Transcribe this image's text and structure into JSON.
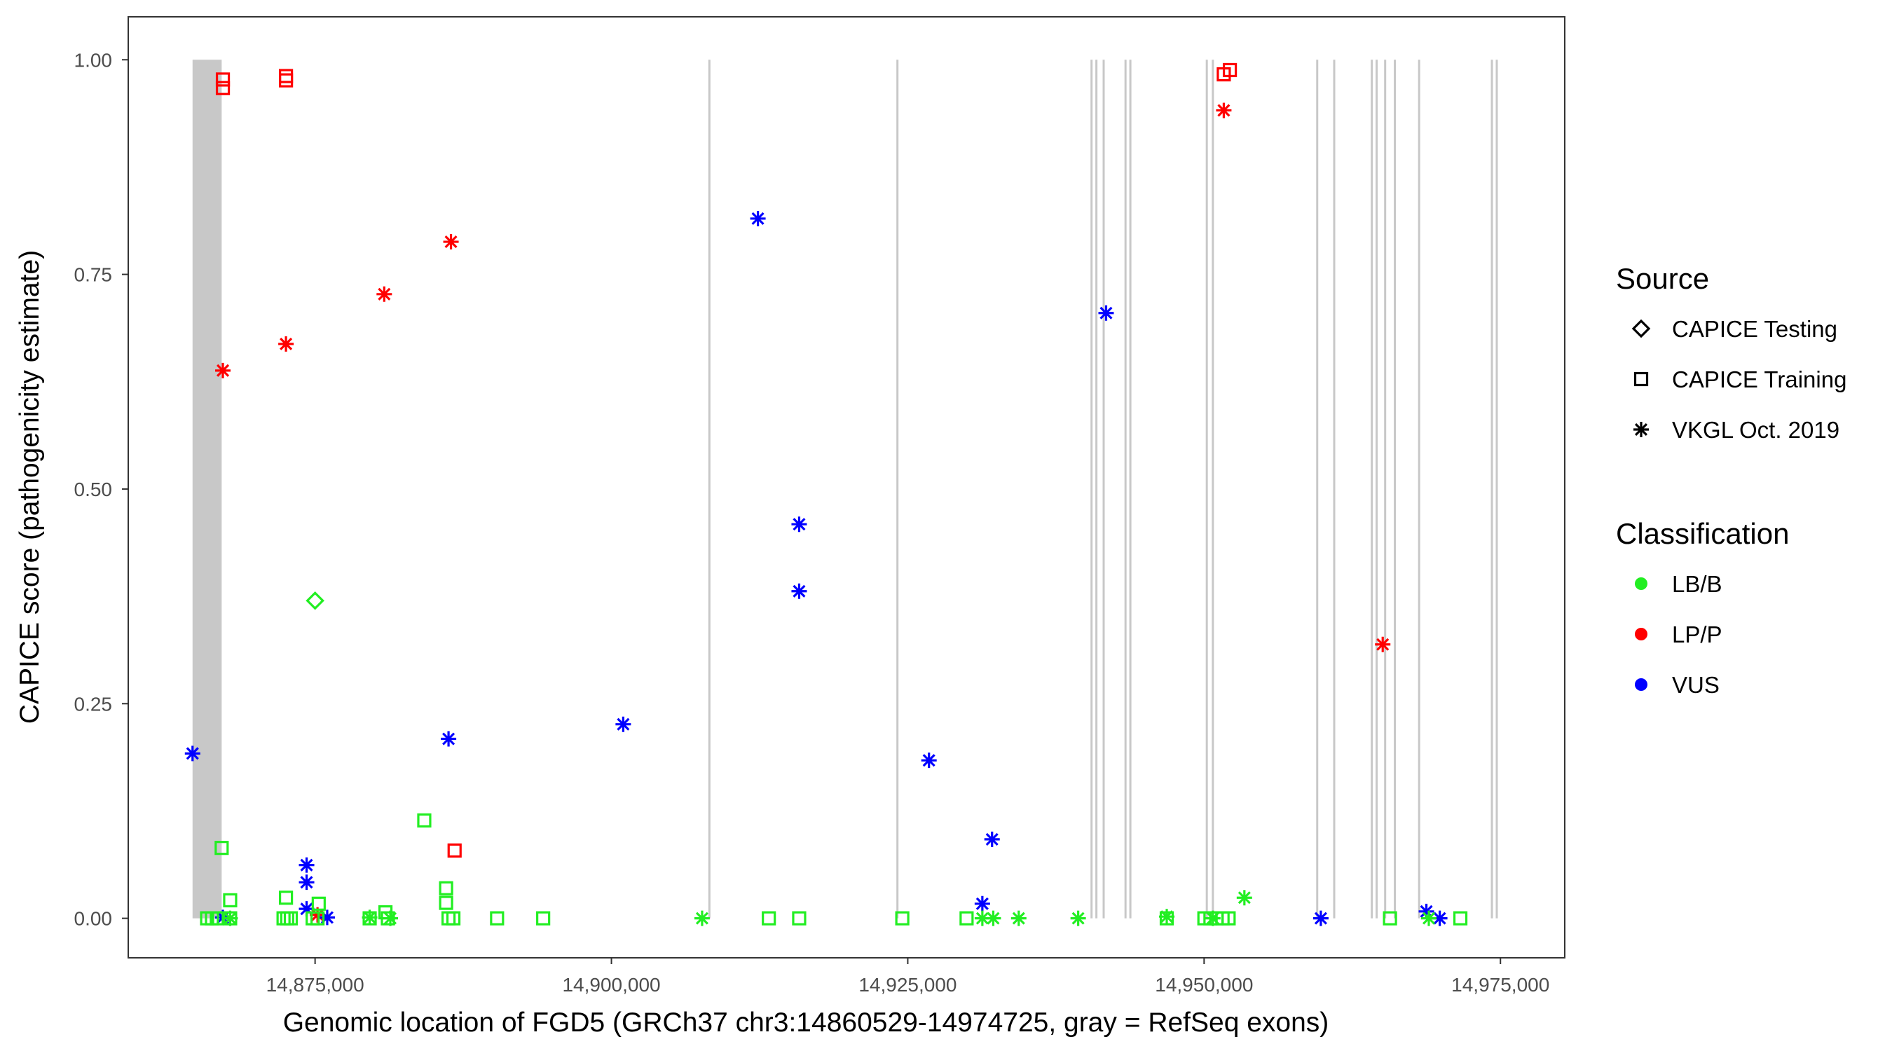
{
  "chart_data": {
    "type": "scatter",
    "xlabel": "Genomic location of FGD5 (GRCh37 chr3:14860529-14974725, gray = RefSeq exons)",
    "ylabel": "CAPICE score (pathogenicity estimate)",
    "xlim": [
      14859237,
      14980425
    ],
    "ylim": [
      -0.046,
      1.05
    ],
    "x_ticks": [
      14875000,
      14900000,
      14925000,
      14950000,
      14975000
    ],
    "x_tick_labels": [
      "14,875,000",
      "14,900,000",
      "14,925,000",
      "14,950,000",
      "14,975,000"
    ],
    "y_ticks": [
      0,
      0.25,
      0.5,
      0.75,
      1.0
    ],
    "y_tick_labels": [
      "0.00",
      "0.25",
      "0.50",
      "0.75",
      "1.00"
    ],
    "grid": false,
    "exons": [
      [
        14864663,
        14867119
      ],
      [
        14908264,
        14908264
      ],
      [
        14924128,
        14924128
      ],
      [
        14940504,
        14940504
      ],
      [
        14940913,
        14940913
      ],
      [
        14941527,
        14941527
      ],
      [
        14943370,
        14943370
      ],
      [
        14943779,
        14943779
      ],
      [
        14950227,
        14950227
      ],
      [
        14950739,
        14950739
      ],
      [
        14959542,
        14959542
      ],
      [
        14960975,
        14960975
      ],
      [
        14964148,
        14964148
      ],
      [
        14964556,
        14964556
      ],
      [
        14965273,
        14965273
      ],
      [
        14966092,
        14966092
      ],
      [
        14968139,
        14968139
      ],
      [
        14974280,
        14974280
      ],
      [
        14974690,
        14974690
      ]
    ],
    "legend": {
      "placement": "right",
      "source_title": "Source",
      "source_items": [
        {
          "key": "testing",
          "label": "CAPICE Testing",
          "shape": "diamond"
        },
        {
          "key": "training",
          "label": "CAPICE Training",
          "shape": "square"
        },
        {
          "key": "vkgl",
          "label": "VKGL Oct. 2019",
          "shape": "asterisk"
        }
      ],
      "class_title": "Classification",
      "class_items": [
        {
          "key": "LB/B",
          "label": "LB/B",
          "color": "#22ee22"
        },
        {
          "key": "LP/P",
          "label": "LP/P",
          "color": "#ff0000"
        },
        {
          "key": "VUS",
          "label": "VUS",
          "color": "#0000ff"
        }
      ]
    },
    "points": [
      [
        14867221,
        0.638,
        "vkgl",
        "LP/P"
      ],
      [
        14872544,
        0.669,
        "vkgl",
        "LP/P"
      ],
      [
        14880834,
        0.727,
        "vkgl",
        "LP/P"
      ],
      [
        14886463,
        0.788,
        "vkgl",
        "LP/P"
      ],
      [
        14951660,
        0.941,
        "vkgl",
        "LP/P"
      ],
      [
        14965068,
        0.319,
        "vkgl",
        "LP/P"
      ],
      [
        14875205,
        0.004,
        "vkgl",
        "LP/P"
      ],
      [
        14864663,
        0.192,
        "vkgl",
        "VUS"
      ],
      [
        14912358,
        0.815,
        "vkgl",
        "VUS"
      ],
      [
        14915838,
        0.459,
        "vkgl",
        "VUS"
      ],
      [
        14915838,
        0.381,
        "vkgl",
        "VUS"
      ],
      [
        14900996,
        0.226,
        "vkgl",
        "VUS"
      ],
      [
        14886258,
        0.209,
        "vkgl",
        "VUS"
      ],
      [
        14941732,
        0.705,
        "vkgl",
        "VUS"
      ],
      [
        14926789,
        0.184,
        "vkgl",
        "VUS"
      ],
      [
        14932111,
        0.092,
        "vkgl",
        "VUS"
      ],
      [
        14931292,
        0.017,
        "vkgl",
        "VUS"
      ],
      [
        14874284,
        0.062,
        "vkgl",
        "VUS"
      ],
      [
        14874284,
        0.042,
        "vkgl",
        "VUS"
      ],
      [
        14874284,
        0.011,
        "vkgl",
        "VUS"
      ],
      [
        14876023,
        0.001,
        "vkgl",
        "VUS"
      ],
      [
        14867221,
        0.001,
        "vkgl",
        "VUS"
      ],
      [
        14959847,
        0.0,
        "vkgl",
        "VUS"
      ],
      [
        14968752,
        0.008,
        "vkgl",
        "VUS"
      ],
      [
        14969878,
        0.0,
        "vkgl",
        "VUS"
      ],
      [
        14907650,
        0.0,
        "vkgl",
        "LB/B"
      ],
      [
        14931292,
        0.0,
        "vkgl",
        "LB/B"
      ],
      [
        14932213,
        0.0,
        "vkgl",
        "LB/B"
      ],
      [
        14934362,
        0.0,
        "vkgl",
        "LB/B"
      ],
      [
        14939377,
        0.0,
        "vkgl",
        "LB/B"
      ],
      [
        14953399,
        0.024,
        "vkgl",
        "LB/B"
      ],
      [
        14946849,
        0.002,
        "vkgl",
        "LB/B"
      ],
      [
        14879605,
        0.001,
        "vkgl",
        "LB/B"
      ],
      [
        14881346,
        0.0,
        "vkgl",
        "LB/B"
      ],
      [
        14867835,
        0.0,
        "vkgl",
        "LB/B"
      ],
      [
        14968957,
        0.0,
        "vkgl",
        "LB/B"
      ],
      [
        14950739,
        0.0,
        "vkgl",
        "LB/B"
      ],
      [
        14867119,
        0.082,
        "training",
        "LB/B"
      ],
      [
        14884211,
        0.114,
        "training",
        "LB/B"
      ],
      [
        14867835,
        0.021,
        "training",
        "LB/B"
      ],
      [
        14872544,
        0.024,
        "training",
        "LB/B"
      ],
      [
        14875307,
        0.017,
        "training",
        "LB/B"
      ],
      [
        14886053,
        0.035,
        "training",
        "LB/B"
      ],
      [
        14886053,
        0.018,
        "training",
        "LB/B"
      ],
      [
        14880936,
        0.007,
        "training",
        "LB/B"
      ],
      [
        14865891,
        0.0,
        "training",
        "LB/B"
      ],
      [
        14866300,
        0.0,
        "training",
        "LB/B"
      ],
      [
        14866710,
        0.0,
        "training",
        "LB/B"
      ],
      [
        14867835,
        0.0,
        "training",
        "LB/B"
      ],
      [
        14872339,
        0.0,
        "training",
        "LB/B"
      ],
      [
        14872646,
        0.0,
        "training",
        "LB/B"
      ],
      [
        14872953,
        0.0,
        "training",
        "LB/B"
      ],
      [
        14874795,
        0.0,
        "training",
        "LB/B"
      ],
      [
        14875205,
        0.0,
        "training",
        "LB/B"
      ],
      [
        14879605,
        0.0,
        "training",
        "LB/B"
      ],
      [
        14881141,
        0.0,
        "training",
        "LB/B"
      ],
      [
        14886258,
        0.0,
        "training",
        "LB/B"
      ],
      [
        14886668,
        0.0,
        "training",
        "LB/B"
      ],
      [
        14890352,
        0.0,
        "training",
        "LB/B"
      ],
      [
        14894242,
        0.0,
        "training",
        "LB/B"
      ],
      [
        14913279,
        0.0,
        "training",
        "LB/B"
      ],
      [
        14915838,
        0.0,
        "training",
        "LB/B"
      ],
      [
        14924538,
        0.0,
        "training",
        "LB/B"
      ],
      [
        14929962,
        0.0,
        "training",
        "LB/B"
      ],
      [
        14950022,
        0.0,
        "training",
        "LB/B"
      ],
      [
        14950534,
        0.0,
        "training",
        "LB/B"
      ],
      [
        14951046,
        0.0,
        "training",
        "LB/B"
      ],
      [
        14951558,
        0.0,
        "training",
        "LB/B"
      ],
      [
        14952069,
        0.0,
        "training",
        "LB/B"
      ],
      [
        14965682,
        0.0,
        "training",
        "LB/B"
      ],
      [
        14971618,
        0.0,
        "training",
        "LB/B"
      ],
      [
        14946849,
        0.0,
        "training",
        "LB/B"
      ],
      [
        14867221,
        0.977,
        "training",
        "LP/P"
      ],
      [
        14867221,
        0.967,
        "training",
        "LP/P"
      ],
      [
        14872544,
        0.981,
        "training",
        "LP/P"
      ],
      [
        14872544,
        0.976,
        "training",
        "LP/P"
      ],
      [
        14951660,
        0.983,
        "training",
        "LP/P"
      ],
      [
        14952172,
        0.988,
        "training",
        "LP/P"
      ],
      [
        14886770,
        0.079,
        "training",
        "LP/P"
      ],
      [
        14875000,
        0.37,
        "testing",
        "LB/B"
      ]
    ]
  }
}
